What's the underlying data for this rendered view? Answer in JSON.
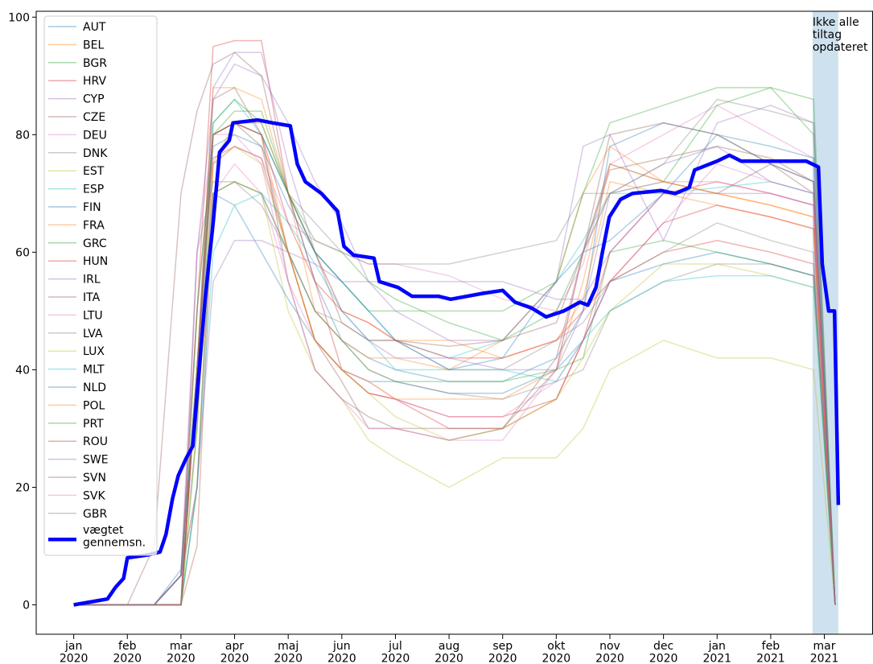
{
  "chart_data": {
    "type": "line",
    "annotation": "Ikke alle\ntiltag\nopdateret",
    "shaded_span": [
      13.78,
      14.26
    ],
    "shade_color": "#aecde3",
    "xlim": [
      -0.7,
      14.9
    ],
    "ylim": [
      -5,
      101
    ],
    "xticks": [
      {
        "value": 0,
        "label": "jan\n2020"
      },
      {
        "value": 1,
        "label": "feb\n2020"
      },
      {
        "value": 2,
        "label": "mar\n2020"
      },
      {
        "value": 3,
        "label": "apr\n2020"
      },
      {
        "value": 4,
        "label": "maj\n2020"
      },
      {
        "value": 5,
        "label": "jun\n2020"
      },
      {
        "value": 6,
        "label": "jul\n2020"
      },
      {
        "value": 7,
        "label": "aug\n2020"
      },
      {
        "value": 8,
        "label": "sep\n2020"
      },
      {
        "value": 9,
        "label": "okt\n2020"
      },
      {
        "value": 10,
        "label": "nov\n2020"
      },
      {
        "value": 11,
        "label": "dec\n2020"
      },
      {
        "value": 12,
        "label": "jan\n2021"
      },
      {
        "value": 13,
        "label": "feb\n2021"
      },
      {
        "value": 14,
        "label": "mar\n2021"
      }
    ],
    "yticks": [
      0,
      20,
      40,
      60,
      80,
      100
    ],
    "legend": "upper left",
    "x": [
      0,
      1,
      1.5,
      2,
      2.3,
      2.6,
      3,
      3.5,
      4,
      4.5,
      5,
      5.5,
      6,
      7,
      8,
      9,
      9.5,
      10,
      11,
      12,
      13,
      13.8,
      14.2
    ],
    "series": [
      {
        "name": "AUT",
        "color": "#1f77b4",
        "values": [
          0,
          0,
          0,
          6,
          40,
          80,
          82,
          80,
          70,
          55,
          45,
          42,
          40,
          38,
          38,
          42,
          50,
          78,
          82,
          80,
          75,
          72,
          0
        ]
      },
      {
        "name": "BEL",
        "color": "#ff7f0e",
        "values": [
          0,
          0,
          0,
          5,
          20,
          75,
          82,
          82,
          70,
          60,
          50,
          48,
          45,
          45,
          42,
          45,
          52,
          72,
          70,
          68,
          66,
          64,
          0
        ]
      },
      {
        "name": "BGR",
        "color": "#2ca02c",
        "values": [
          0,
          0,
          0,
          0,
          20,
          70,
          72,
          70,
          60,
          50,
          45,
          40,
          38,
          38,
          38,
          40,
          42,
          60,
          62,
          60,
          58,
          56,
          0
        ]
      },
      {
        "name": "HRV",
        "color": "#d62728",
        "values": [
          0,
          0,
          0,
          5,
          50,
          95,
          96,
          96,
          70,
          55,
          40,
          36,
          35,
          30,
          30,
          35,
          45,
          55,
          60,
          62,
          60,
          58,
          0
        ]
      },
      {
        "name": "CYP",
        "color": "#9467bd",
        "values": [
          0,
          0,
          0,
          0,
          40,
          88,
          94,
          94,
          75,
          60,
          50,
          45,
          42,
          42,
          40,
          40,
          50,
          70,
          75,
          78,
          72,
          70,
          0
        ]
      },
      {
        "name": "CZE",
        "color": "#8c564b",
        "values": [
          0,
          0,
          0,
          5,
          50,
          80,
          82,
          78,
          60,
          45,
          38,
          30,
          30,
          30,
          30,
          42,
          60,
          75,
          72,
          70,
          75,
          70,
          0
        ]
      },
      {
        "name": "DEU",
        "color": "#e377c2",
        "values": [
          0,
          0,
          0,
          5,
          30,
          75,
          78,
          76,
          65,
          62,
          60,
          58,
          58,
          56,
          52,
          50,
          58,
          75,
          80,
          85,
          80,
          76,
          0
        ]
      },
      {
        "name": "DNK",
        "color": "#7f7f7f",
        "values": [
          0,
          0,
          0,
          0,
          60,
          72,
          72,
          68,
          60,
          50,
          48,
          45,
          45,
          40,
          40,
          45,
          48,
          55,
          60,
          65,
          62,
          60,
          0
        ]
      },
      {
        "name": "EST",
        "color": "#bcbd22",
        "values": [
          0,
          0,
          0,
          0,
          10,
          70,
          72,
          70,
          50,
          40,
          35,
          28,
          25,
          20,
          25,
          25,
          30,
          40,
          45,
          42,
          42,
          40,
          0
        ]
      },
      {
        "name": "ESP",
        "color": "#17becf",
        "values": [
          0,
          0,
          0,
          5,
          40,
          82,
          86,
          80,
          70,
          60,
          55,
          50,
          45,
          42,
          45,
          55,
          62,
          70,
          70,
          71,
          72,
          70,
          0
        ]
      },
      {
        "name": "FIN",
        "color": "#1f77b4",
        "values": [
          0,
          0,
          0,
          0,
          40,
          70,
          68,
          60,
          52,
          45,
          40,
          38,
          38,
          36,
          36,
          40,
          45,
          55,
          58,
          60,
          58,
          56,
          0
        ]
      },
      {
        "name": "FRA",
        "color": "#ff7f0e",
        "values": [
          0,
          0,
          0,
          5,
          40,
          88,
          88,
          86,
          70,
          50,
          45,
          42,
          42,
          40,
          45,
          55,
          70,
          78,
          72,
          70,
          68,
          66,
          0
        ]
      },
      {
        "name": "GRC",
        "color": "#2ca02c",
        "values": [
          0,
          0,
          0,
          0,
          50,
          80,
          84,
          84,
          70,
          60,
          55,
          50,
          50,
          50,
          50,
          55,
          70,
          82,
          85,
          88,
          88,
          86,
          0
        ]
      },
      {
        "name": "HUN",
        "color": "#d62728",
        "values": [
          0,
          0,
          0,
          0,
          40,
          76,
          78,
          76,
          60,
          45,
          40,
          36,
          35,
          32,
          32,
          35,
          45,
          60,
          70,
          72,
          70,
          68,
          0
        ]
      },
      {
        "name": "IRL",
        "color": "#9467bd",
        "values": [
          0,
          0,
          0,
          5,
          60,
          86,
          92,
          90,
          82,
          72,
          65,
          55,
          50,
          45,
          45,
          55,
          78,
          80,
          62,
          82,
          85,
          82,
          0
        ]
      },
      {
        "name": "ITA",
        "color": "#8c564b",
        "values": [
          0,
          0,
          10,
          70,
          84,
          92,
          94,
          90,
          70,
          60,
          48,
          45,
          45,
          44,
          45,
          48,
          60,
          74,
          76,
          78,
          76,
          72,
          0
        ]
      },
      {
        "name": "LTU",
        "color": "#e377c2",
        "values": [
          0,
          0,
          0,
          0,
          10,
          70,
          75,
          70,
          55,
          45,
          40,
          38,
          35,
          32,
          32,
          38,
          45,
          55,
          65,
          75,
          72,
          70,
          0
        ]
      },
      {
        "name": "LVA",
        "color": "#7f7f7f",
        "values": [
          0,
          0,
          0,
          0,
          20,
          70,
          72,
          70,
          60,
          50,
          45,
          40,
          38,
          36,
          35,
          38,
          40,
          50,
          55,
          58,
          58,
          56,
          0
        ]
      },
      {
        "name": "LUX",
        "color": "#bcbd22",
        "values": [
          0,
          0,
          0,
          0,
          30,
          75,
          78,
          75,
          60,
          45,
          40,
          36,
          32,
          28,
          30,
          35,
          42,
          50,
          58,
          58,
          56,
          54,
          0
        ]
      },
      {
        "name": "MLT",
        "color": "#17becf",
        "values": [
          0,
          0,
          0,
          0,
          20,
          60,
          68,
          70,
          65,
          58,
          50,
          45,
          40,
          40,
          40,
          38,
          45,
          50,
          55,
          56,
          56,
          54,
          0
        ]
      },
      {
        "name": "NLD",
        "color": "#1f77b4",
        "values": [
          0,
          0,
          0,
          5,
          40,
          78,
          80,
          78,
          68,
          60,
          55,
          50,
          45,
          40,
          42,
          55,
          60,
          62,
          70,
          80,
          78,
          76,
          0
        ]
      },
      {
        "name": "POL",
        "color": "#ff7f0e",
        "values": [
          0,
          0,
          0,
          0,
          40,
          80,
          82,
          80,
          60,
          45,
          40,
          38,
          35,
          35,
          35,
          40,
          55,
          75,
          72,
          70,
          68,
          66,
          0
        ]
      },
      {
        "name": "PRT",
        "color": "#2ca02c",
        "values": [
          0,
          0,
          0,
          0,
          30,
          82,
          86,
          82,
          70,
          62,
          60,
          55,
          52,
          48,
          45,
          50,
          60,
          70,
          72,
          85,
          88,
          80,
          0
        ]
      },
      {
        "name": "ROU",
        "color": "#d62728",
        "values": [
          0,
          0,
          0,
          0,
          40,
          80,
          82,
          80,
          65,
          55,
          50,
          48,
          45,
          42,
          42,
          45,
          50,
          55,
          65,
          68,
          66,
          64,
          0
        ]
      },
      {
        "name": "SWE",
        "color": "#9467bd",
        "values": [
          0,
          0,
          0,
          5,
          20,
          55,
          62,
          62,
          60,
          58,
          55,
          55,
          55,
          55,
          55,
          52,
          52,
          60,
          70,
          70,
          70,
          68,
          0
        ]
      },
      {
        "name": "SVN",
        "color": "#8c564b",
        "values": [
          0,
          0,
          0,
          0,
          40,
          86,
          88,
          80,
          55,
          40,
          35,
          32,
          30,
          28,
          30,
          40,
          60,
          80,
          82,
          80,
          75,
          72,
          0
        ]
      },
      {
        "name": "SVK",
        "color": "#e377c2",
        "values": [
          0,
          0,
          0,
          0,
          60,
          80,
          80,
          75,
          55,
          40,
          35,
          30,
          30,
          28,
          28,
          40,
          60,
          70,
          72,
          72,
          70,
          68,
          0
        ]
      },
      {
        "name": "GBR",
        "color": "#7f7f7f",
        "values": [
          0,
          0,
          0,
          5,
          40,
          80,
          82,
          80,
          70,
          65,
          60,
          58,
          58,
          58,
          60,
          62,
          70,
          70,
          75,
          86,
          84,
          82,
          0
        ]
      },
      {
        "name": "vægtet\ngennemsn.",
        "color": "#0000ff",
        "emphasis": true,
        "x": [
          0,
          0.63,
          0.78,
          0.93,
          1.0,
          1.39,
          1.61,
          1.72,
          1.84,
          1.95,
          2.1,
          2.22,
          2.34,
          2.45,
          2.6,
          2.72,
          2.9,
          2.97,
          3.43,
          3.71,
          4.04,
          4.17,
          4.32,
          4.62,
          4.92,
          5.04,
          5.22,
          5.6,
          5.7,
          6.05,
          6.31,
          6.8,
          7.03,
          7.63,
          8.0,
          8.23,
          8.54,
          8.81,
          9.14,
          9.44,
          9.59,
          9.74,
          9.86,
          9.99,
          10.2,
          10.42,
          10.95,
          11.22,
          11.48,
          11.58,
          12.0,
          12.23,
          12.45,
          13.05,
          13.66,
          13.89,
          13.96,
          14.08,
          14.19,
          14.26
        ],
        "values": [
          0,
          1,
          3,
          4.5,
          8,
          8.5,
          9,
          12,
          18,
          22,
          25,
          27,
          40,
          52,
          65,
          77,
          79,
          82,
          82.5,
          82,
          81.5,
          75,
          72,
          70,
          67,
          61,
          59.5,
          59,
          55,
          54,
          52.5,
          52.5,
          52,
          53,
          53.5,
          51.5,
          50.5,
          49,
          50,
          51.5,
          51,
          54,
          60,
          66,
          69,
          70,
          70.5,
          70,
          71,
          74,
          75.5,
          76.5,
          75.5,
          75.5,
          75.5,
          74.5,
          58,
          50,
          50,
          17
        ]
      }
    ]
  }
}
